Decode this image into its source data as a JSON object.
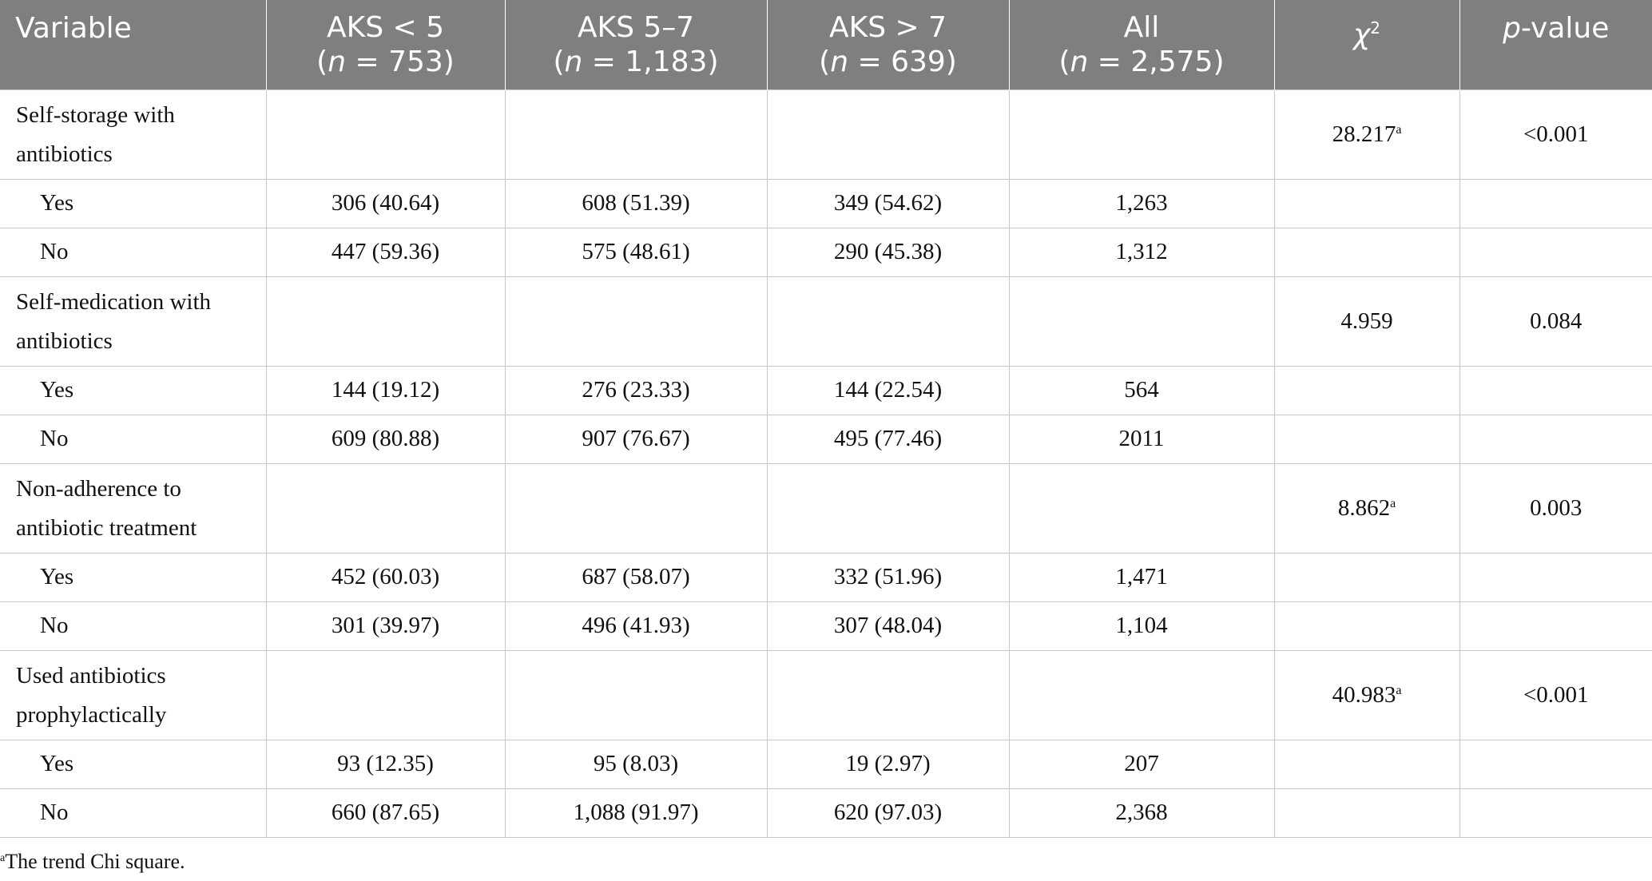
{
  "header": {
    "variable": "Variable",
    "columns": [
      {
        "label": "AKS < 5",
        "n_prefix": "n",
        "n_value": " = 753"
      },
      {
        "label": "AKS 5–7",
        "n_prefix": "n",
        "n_value": " = 1,183"
      },
      {
        "label": "AKS > 7",
        "n_prefix": "n",
        "n_value": " = 639"
      },
      {
        "label": "All",
        "n_prefix": "n",
        "n_value": " = 2,575"
      }
    ],
    "chi_symbol": "χ",
    "chi_power": "2",
    "p_prefix": "p",
    "p_suffix": "-value"
  },
  "groups": [
    {
      "name": "Self-storage with antibiotics",
      "chi": "28.217",
      "chi_note": "a",
      "p": "<0.001",
      "rows": [
        {
          "label": "Yes",
          "aks_lt5": "306 (40.64)",
          "aks_5_7": "608 (51.39)",
          "aks_gt7": "349 (54.62)",
          "all": "1,263"
        },
        {
          "label": "No",
          "aks_lt5": "447 (59.36)",
          "aks_5_7": "575 (48.61)",
          "aks_gt7": "290 (45.38)",
          "all": "1,312"
        }
      ]
    },
    {
      "name": "Self-medication with antibiotics",
      "chi": "4.959",
      "chi_note": "",
      "p": "0.084",
      "rows": [
        {
          "label": "Yes",
          "aks_lt5": "144 (19.12)",
          "aks_5_7": "276 (23.33)",
          "aks_gt7": "144 (22.54)",
          "all": "564"
        },
        {
          "label": "No",
          "aks_lt5": "609 (80.88)",
          "aks_5_7": "907 (76.67)",
          "aks_gt7": "495 (77.46)",
          "all": "2011"
        }
      ]
    },
    {
      "name": "Non-adherence to antibiotic treatment",
      "chi": "8.862",
      "chi_note": "a",
      "p": "0.003",
      "rows": [
        {
          "label": "Yes",
          "aks_lt5": "452 (60.03)",
          "aks_5_7": "687 (58.07)",
          "aks_gt7": "332 (51.96)",
          "all": "1,471"
        },
        {
          "label": "No",
          "aks_lt5": "301 (39.97)",
          "aks_5_7": "496 (41.93)",
          "aks_gt7": "307 (48.04)",
          "all": "1,104"
        }
      ]
    },
    {
      "name": "Used antibiotics prophylactically",
      "chi": "40.983",
      "chi_note": "a",
      "p": "<0.001",
      "rows": [
        {
          "label": "Yes",
          "aks_lt5": "93 (12.35)",
          "aks_5_7": "95 (8.03)",
          "aks_gt7": "19 (2.97)",
          "all": "207"
        },
        {
          "label": "No",
          "aks_lt5": "660 (87.65)",
          "aks_5_7": "1,088 (91.97)",
          "aks_gt7": "620 (97.03)",
          "all": "2,368"
        }
      ]
    }
  ],
  "footnote": {
    "marker": "a",
    "text": "The trend Chi square."
  }
}
